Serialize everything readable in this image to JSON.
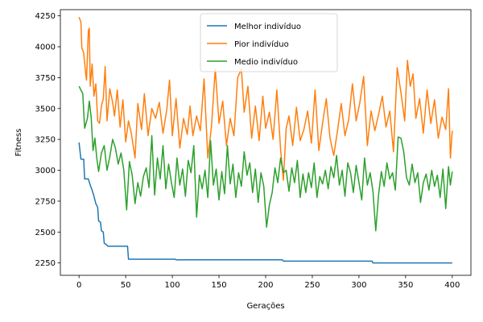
{
  "chart_data": {
    "type": "line",
    "title": "",
    "xlabel": "Gerações",
    "ylabel": "Fitness",
    "xlim": [
      -20,
      420
    ],
    "ylim": [
      2150,
      4300
    ],
    "xticks": [
      0,
      50,
      100,
      150,
      200,
      250,
      300,
      350,
      400
    ],
    "yticks": [
      2250,
      2500,
      2750,
      3000,
      3250,
      3500,
      3750,
      4000,
      4250
    ],
    "grid": false,
    "legend_position": "top-center",
    "series": [
      {
        "name": "Melhor indivíduo",
        "color": "#1f77b4",
        "points": [
          [
            0,
            3225
          ],
          [
            2,
            3090
          ],
          [
            5,
            3090
          ],
          [
            6,
            2930
          ],
          [
            10,
            2930
          ],
          [
            12,
            2880
          ],
          [
            14,
            2840
          ],
          [
            16,
            2790
          ],
          [
            18,
            2730
          ],
          [
            20,
            2700
          ],
          [
            21,
            2590
          ],
          [
            23,
            2580
          ],
          [
            24,
            2510
          ],
          [
            26,
            2500
          ],
          [
            27,
            2410
          ],
          [
            29,
            2400
          ],
          [
            31,
            2385
          ],
          [
            52,
            2385
          ],
          [
            53,
            2280
          ],
          [
            103,
            2280
          ],
          [
            104,
            2275
          ],
          [
            218,
            2275
          ],
          [
            219,
            2265
          ],
          [
            314,
            2265
          ],
          [
            315,
            2250
          ],
          [
            400,
            2250
          ]
        ]
      },
      {
        "name": "Pior indivíduo",
        "color": "#ff7f0e",
        "points": [
          [
            0,
            4240
          ],
          [
            2,
            4200
          ],
          [
            3,
            3990
          ],
          [
            5,
            3950
          ],
          [
            7,
            3790
          ],
          [
            8,
            3730
          ],
          [
            10,
            4130
          ],
          [
            11,
            4150
          ],
          [
            12,
            3680
          ],
          [
            14,
            3860
          ],
          [
            16,
            3600
          ],
          [
            18,
            3700
          ],
          [
            20,
            3400
          ],
          [
            22,
            3380
          ],
          [
            24,
            3520
          ],
          [
            26,
            3580
          ],
          [
            28,
            3840
          ],
          [
            30,
            3400
          ],
          [
            33,
            3660
          ],
          [
            36,
            3550
          ],
          [
            38,
            3440
          ],
          [
            41,
            3650
          ],
          [
            44,
            3350
          ],
          [
            47,
            3570
          ],
          [
            50,
            3230
          ],
          [
            53,
            3400
          ],
          [
            56,
            3300
          ],
          [
            60,
            3100
          ],
          [
            63,
            3540
          ],
          [
            67,
            3330
          ],
          [
            70,
            3620
          ],
          [
            74,
            3280
          ],
          [
            78,
            3500
          ],
          [
            82,
            3420
          ],
          [
            86,
            3550
          ],
          [
            90,
            3300
          ],
          [
            94,
            3490
          ],
          [
            97,
            3730
          ],
          [
            100,
            3280
          ],
          [
            104,
            3580
          ],
          [
            108,
            3180
          ],
          [
            112,
            3420
          ],
          [
            116,
            3290
          ],
          [
            119,
            3520
          ],
          [
            122,
            3280
          ],
          [
            126,
            3440
          ],
          [
            130,
            3320
          ],
          [
            134,
            3740
          ],
          [
            138,
            3100
          ],
          [
            142,
            3360
          ],
          [
            146,
            3820
          ],
          [
            150,
            3380
          ],
          [
            154,
            3560
          ],
          [
            158,
            3200
          ],
          [
            162,
            3420
          ],
          [
            166,
            3280
          ],
          [
            170,
            3750
          ],
          [
            174,
            3820
          ],
          [
            177,
            3470
          ],
          [
            181,
            3680
          ],
          [
            185,
            3260
          ],
          [
            189,
            3520
          ],
          [
            193,
            3240
          ],
          [
            197,
            3600
          ],
          [
            200,
            3340
          ],
          [
            204,
            3470
          ],
          [
            208,
            3250
          ],
          [
            212,
            3650
          ],
          [
            216,
            3170
          ],
          [
            219,
            2920
          ],
          [
            222,
            3340
          ],
          [
            225,
            3440
          ],
          [
            229,
            3200
          ],
          [
            233,
            3510
          ],
          [
            237,
            3240
          ],
          [
            241,
            3330
          ],
          [
            245,
            3480
          ],
          [
            249,
            3220
          ],
          [
            253,
            3650
          ],
          [
            257,
            3160
          ],
          [
            261,
            3380
          ],
          [
            265,
            3580
          ],
          [
            269,
            3260
          ],
          [
            273,
            3120
          ],
          [
            277,
            3320
          ],
          [
            281,
            3540
          ],
          [
            285,
            3280
          ],
          [
            289,
            3410
          ],
          [
            293,
            3700
          ],
          [
            297,
            3400
          ],
          [
            301,
            3550
          ],
          [
            305,
            3760
          ],
          [
            309,
            3200
          ],
          [
            313,
            3480
          ],
          [
            317,
            3320
          ],
          [
            321,
            3450
          ],
          [
            325,
            3600
          ],
          [
            329,
            3350
          ],
          [
            333,
            3480
          ],
          [
            337,
            3150
          ],
          [
            341,
            3830
          ],
          [
            345,
            3630
          ],
          [
            349,
            3400
          ],
          [
            352,
            3890
          ],
          [
            355,
            3680
          ],
          [
            358,
            3780
          ],
          [
            361,
            3420
          ],
          [
            365,
            3580
          ],
          [
            369,
            3300
          ],
          [
            373,
            3650
          ],
          [
            377,
            3380
          ],
          [
            381,
            3570
          ],
          [
            385,
            3260
          ],
          [
            389,
            3430
          ],
          [
            393,
            3330
          ],
          [
            396,
            3660
          ],
          [
            398,
            3100
          ],
          [
            400,
            3320
          ]
        ]
      },
      {
        "name": "Medio indivíduo",
        "color": "#2ca02c",
        "points": [
          [
            0,
            3680
          ],
          [
            2,
            3650
          ],
          [
            4,
            3620
          ],
          [
            6,
            3340
          ],
          [
            9,
            3420
          ],
          [
            11,
            3560
          ],
          [
            13,
            3430
          ],
          [
            15,
            3160
          ],
          [
            17,
            3260
          ],
          [
            19,
            3100
          ],
          [
            21,
            2990
          ],
          [
            24,
            3140
          ],
          [
            27,
            3200
          ],
          [
            30,
            3000
          ],
          [
            33,
            3110
          ],
          [
            36,
            3250
          ],
          [
            39,
            3180
          ],
          [
            42,
            3050
          ],
          [
            45,
            3140
          ],
          [
            48,
            3000
          ],
          [
            51,
            2680
          ],
          [
            54,
            3070
          ],
          [
            57,
            2960
          ],
          [
            60,
            2730
          ],
          [
            63,
            2900
          ],
          [
            66,
            2790
          ],
          [
            69,
            2950
          ],
          [
            72,
            3020
          ],
          [
            75,
            2860
          ],
          [
            78,
            3280
          ],
          [
            81,
            2800
          ],
          [
            84,
            3100
          ],
          [
            87,
            2930
          ],
          [
            90,
            3200
          ],
          [
            93,
            2850
          ],
          [
            96,
            3050
          ],
          [
            99,
            2900
          ],
          [
            102,
            2780
          ],
          [
            105,
            3100
          ],
          [
            108,
            2880
          ],
          [
            111,
            3010
          ],
          [
            114,
            2790
          ],
          [
            117,
            3080
          ],
          [
            120,
            2980
          ],
          [
            123,
            3200
          ],
          [
            126,
            2620
          ],
          [
            129,
            2960
          ],
          [
            132,
            2850
          ],
          [
            135,
            3000
          ],
          [
            138,
            2780
          ],
          [
            141,
            3240
          ],
          [
            144,
            2880
          ],
          [
            147,
            3010
          ],
          [
            150,
            2760
          ],
          [
            153,
            2990
          ],
          [
            156,
            2810
          ],
          [
            159,
            3200
          ],
          [
            162,
            2890
          ],
          [
            165,
            3050
          ],
          [
            168,
            2780
          ],
          [
            171,
            2980
          ],
          [
            174,
            2870
          ],
          [
            177,
            3150
          ],
          [
            180,
            2960
          ],
          [
            183,
            3060
          ],
          [
            186,
            2820
          ],
          [
            189,
            3010
          ],
          [
            192,
            2740
          ],
          [
            195,
            2980
          ],
          [
            198,
            2870
          ],
          [
            201,
            2540
          ],
          [
            204,
            2720
          ],
          [
            207,
            2820
          ],
          [
            210,
            3020
          ],
          [
            213,
            2900
          ],
          [
            216,
            3100
          ],
          [
            219,
            2980
          ],
          [
            222,
            3000
          ],
          [
            225,
            2830
          ],
          [
            228,
            3020
          ],
          [
            231,
            2900
          ],
          [
            234,
            3080
          ],
          [
            237,
            2780
          ],
          [
            240,
            2970
          ],
          [
            243,
            2820
          ],
          [
            246,
            2980
          ],
          [
            249,
            2860
          ],
          [
            252,
            3060
          ],
          [
            255,
            2780
          ],
          [
            258,
            2950
          ],
          [
            261,
            2890
          ],
          [
            264,
            3000
          ],
          [
            267,
            2850
          ],
          [
            270,
            3030
          ],
          [
            273,
            2940
          ],
          [
            276,
            3120
          ],
          [
            279,
            2880
          ],
          [
            282,
            3000
          ],
          [
            285,
            2790
          ],
          [
            288,
            3060
          ],
          [
            291,
            2980
          ],
          [
            294,
            2820
          ],
          [
            297,
            3040
          ],
          [
            300,
            2900
          ],
          [
            303,
            2760
          ],
          [
            306,
            3100
          ],
          [
            309,
            2880
          ],
          [
            312,
            2980
          ],
          [
            315,
            2830
          ],
          [
            318,
            2510
          ],
          [
            321,
            2800
          ],
          [
            324,
            2990
          ],
          [
            327,
            2870
          ],
          [
            330,
            3060
          ],
          [
            333,
            2930
          ],
          [
            336,
            2980
          ],
          [
            339,
            2840
          ],
          [
            342,
            3270
          ],
          [
            345,
            3260
          ],
          [
            348,
            3150
          ],
          [
            351,
            2940
          ],
          [
            354,
            2880
          ],
          [
            357,
            3050
          ],
          [
            360,
            2900
          ],
          [
            363,
            2980
          ],
          [
            366,
            2740
          ],
          [
            369,
            2900
          ],
          [
            372,
            2970
          ],
          [
            375,
            2840
          ],
          [
            378,
            3000
          ],
          [
            381,
            2870
          ],
          [
            384,
            2960
          ],
          [
            387,
            2780
          ],
          [
            390,
            3010
          ],
          [
            393,
            2690
          ],
          [
            396,
            3030
          ],
          [
            398,
            2880
          ],
          [
            400,
            2990
          ]
        ]
      }
    ]
  }
}
